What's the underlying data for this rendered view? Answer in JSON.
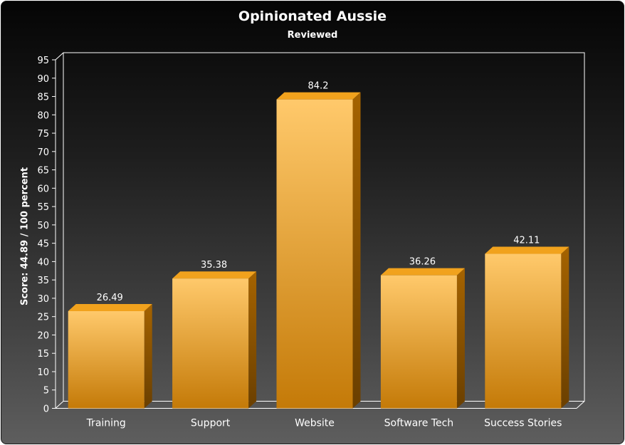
{
  "chart_data": {
    "type": "bar",
    "title": "Opinionated Aussie",
    "subtitle": "Reviewed",
    "xlabel": "",
    "ylabel": "Score: 44.89 / 100 percent",
    "categories": [
      "Training",
      "Support",
      "Website",
      "Software Tech",
      "Success Stories"
    ],
    "values": [
      26.49,
      35.38,
      84.2,
      36.26,
      42.11
    ],
    "data_labels": [
      "26.49",
      "35.38",
      "84.2",
      "36.26",
      "42.11"
    ],
    "ylim": [
      0,
      95
    ],
    "ytick_step": 5,
    "grid": false,
    "legend": "none",
    "bar_style": "3d",
    "colors": {
      "bar_light": "#ffc96b",
      "bar_dark": "#c47a08",
      "bar_top": "#f1a21d",
      "bar_side": "#8c5400",
      "text": "#ffffff"
    }
  }
}
